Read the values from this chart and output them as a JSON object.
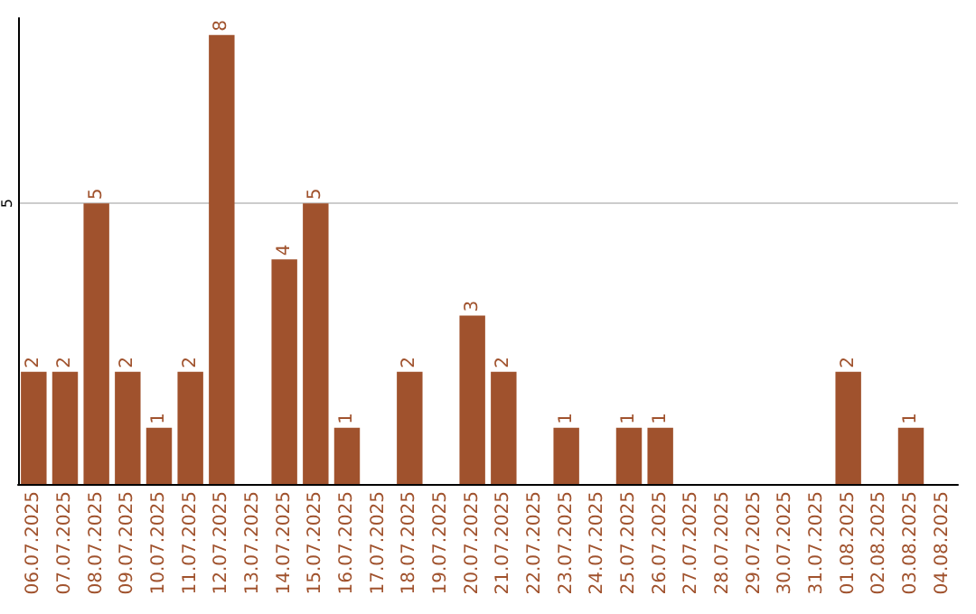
{
  "chart_data": {
    "type": "bar",
    "categories": [
      "06.07.2025",
      "07.07.2025",
      "08.07.2025",
      "09.07.2025",
      "10.07.2025",
      "11.07.2025",
      "12.07.2025",
      "13.07.2025",
      "14.07.2025",
      "15.07.2025",
      "16.07.2025",
      "17.07.2025",
      "18.07.2025",
      "19.07.2025",
      "20.07.2025",
      "21.07.2025",
      "22.07.2025",
      "23.07.2025",
      "24.07.2025",
      "25.07.2025",
      "26.07.2025",
      "27.07.2025",
      "28.07.2025",
      "29.07.2025",
      "30.07.2025",
      "31.07.2025",
      "01.08.2025",
      "02.08.2025",
      "03.08.2025",
      "04.08.2025"
    ],
    "values": [
      2,
      2,
      5,
      2,
      1,
      2,
      8,
      0,
      4,
      5,
      1,
      0,
      2,
      0,
      3,
      2,
      0,
      1,
      0,
      1,
      1,
      0,
      0,
      0,
      0,
      0,
      2,
      0,
      1,
      0
    ],
    "value_labels": [
      "2",
      "2",
      "5",
      "2",
      "1",
      "2",
      "8",
      null,
      "4",
      "5",
      "1",
      null,
      "2",
      null,
      "3",
      "2",
      null,
      "1",
      null,
      "1",
      "1",
      null,
      null,
      null,
      null,
      null,
      "2",
      null,
      "1",
      null
    ],
    "color": "#a0522d",
    "ylim": [
      0,
      8.3
    ],
    "yticks": [
      {
        "value": 0,
        "label": null
      },
      5
    ],
    "grid": "y"
  }
}
